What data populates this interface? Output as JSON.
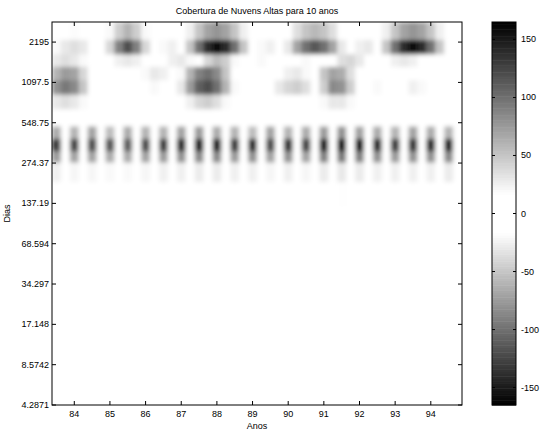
{
  "chart_data": {
    "type": "heatmap",
    "title": "Cobertura de Nuvens Altas para 10 anos",
    "x_label": "Anos",
    "y_label": "Dias",
    "xlim": [
      83.375,
      94.875
    ],
    "xticks": [
      84,
      85,
      86,
      87,
      88,
      89,
      90,
      91,
      92,
      93,
      94
    ],
    "ylim": [
      4.2871,
      3100
    ],
    "yticks": [
      4.2871,
      8.5742,
      17.148,
      34.297,
      68.594,
      137.19,
      274.37,
      548.75,
      1097.5,
      2195
    ],
    "log": "y",
    "y_edges": [
      4.2871,
      8,
      16,
      32,
      64,
      128,
      200,
      280,
      340,
      420,
      520,
      700,
      900,
      1150,
      1450,
      1800,
      2300,
      3100
    ],
    "cells": [
      [
        3,
        -2,
        -3,
        2,
        3,
        -2,
        -3,
        2,
        3,
        -2,
        -3,
        2,
        3,
        -2,
        -3,
        2,
        4,
        -2,
        -4,
        2,
        3,
        -2,
        -3,
        2,
        3,
        -2,
        -3,
        2,
        3,
        -2,
        -4,
        2,
        4,
        -2,
        -4,
        2,
        3,
        -2,
        -3,
        2,
        3,
        -2,
        -3,
        2,
        4,
        -2
      ],
      [
        4,
        -3,
        -4,
        3,
        4,
        -3,
        -4,
        3,
        4,
        -3,
        -4,
        3,
        4,
        -3,
        -4,
        3,
        5,
        -3,
        -5,
        3,
        4,
        -3,
        -4,
        3,
        4,
        -3,
        -4,
        3,
        4,
        -3,
        -5,
        3,
        5,
        -3,
        -5,
        3,
        4,
        -3,
        -4,
        3,
        4,
        -3,
        -4,
        3,
        5,
        -3
      ],
      [
        5,
        -4,
        -5,
        4,
        5,
        -4,
        -5,
        4,
        5,
        -4,
        -5,
        4,
        5,
        -4,
        -5,
        4,
        6,
        -4,
        -6,
        4,
        5,
        -4,
        -5,
        4,
        5,
        -4,
        -5,
        4,
        5,
        -4,
        -6,
        4,
        6,
        -4,
        -6,
        4,
        5,
        -4,
        -5,
        4,
        5,
        -4,
        -5,
        4,
        6,
        -4
      ],
      [
        7,
        -6,
        -6,
        6,
        7,
        -6,
        -6,
        6,
        7,
        -6,
        -7,
        6,
        7,
        -6,
        -7,
        6,
        8,
        -6,
        -8,
        6,
        7,
        -6,
        -7,
        6,
        7,
        -6,
        -7,
        6,
        7,
        -6,
        -8,
        6,
        8,
        -6,
        -8,
        6,
        7,
        -6,
        -7,
        6,
        7,
        -6,
        -7,
        6,
        8,
        -6
      ],
      [
        10,
        -8,
        -9,
        8,
        9,
        -8,
        -9,
        8,
        9,
        -8,
        -10,
        8,
        10,
        -8,
        -10,
        8,
        11,
        -8,
        -11,
        8,
        10,
        -8,
        -10,
        8,
        9,
        -8,
        -10,
        8,
        9,
        -8,
        -11,
        8,
        11,
        -8,
        -11,
        8,
        10,
        -8,
        -10,
        8,
        10,
        -8,
        -10,
        8,
        11,
        -8
      ],
      [
        15,
        -12,
        -14,
        12,
        14,
        -12,
        -13,
        12,
        13,
        -12,
        -14,
        12,
        15,
        -12,
        -15,
        12,
        16,
        -12,
        -16,
        12,
        15,
        -12,
        -15,
        12,
        14,
        -12,
        -15,
        12,
        14,
        -12,
        -16,
        12,
        17,
        -12,
        -16,
        12,
        15,
        -12,
        -15,
        12,
        15,
        -12,
        -15,
        12,
        16,
        -12
      ],
      [
        25,
        -5,
        -22,
        5,
        22,
        -5,
        -20,
        5,
        20,
        -5,
        -22,
        5,
        25,
        -5,
        -25,
        5,
        28,
        -5,
        -28,
        5,
        25,
        -5,
        -25,
        5,
        22,
        -5,
        -25,
        5,
        22,
        -5,
        -28,
        5,
        30,
        -5,
        -28,
        5,
        25,
        -5,
        -25,
        5,
        25,
        -5,
        -25,
        5,
        28,
        -5
      ],
      [
        75,
        10,
        -70,
        -10,
        70,
        10,
        -65,
        -10,
        65,
        10,
        -70,
        -10,
        75,
        10,
        -80,
        -10,
        85,
        10,
        -85,
        -10,
        75,
        10,
        -80,
        -10,
        70,
        10,
        -80,
        -10,
        70,
        10,
        -90,
        -10,
        95,
        10,
        -90,
        -10,
        80,
        10,
        -75,
        -10,
        80,
        10,
        -80,
        -10,
        85,
        10
      ],
      [
        130,
        15,
        -125,
        -15,
        120,
        15,
        -115,
        -15,
        110,
        15,
        -120,
        -15,
        130,
        15,
        -140,
        -15,
        150,
        15,
        -145,
        -15,
        130,
        15,
        -140,
        -15,
        120,
        15,
        -135,
        -15,
        125,
        15,
        -150,
        -15,
        160,
        15,
        -155,
        -15,
        140,
        15,
        -130,
        -15,
        135,
        15,
        -140,
        -15,
        145,
        15
      ],
      [
        65,
        5,
        -60,
        -5,
        70,
        5,
        -55,
        -5,
        65,
        5,
        -60,
        -5,
        60,
        5,
        -70,
        -5,
        75,
        5,
        -65,
        -5,
        60,
        5,
        -55,
        -5,
        70,
        5,
        -60,
        -5,
        65,
        5,
        -75,
        -5,
        80,
        5,
        -70,
        -5,
        65,
        5,
        -60,
        -5,
        70,
        5,
        -65,
        -5,
        60,
        5
      ],
      [
        10,
        -8,
        12,
        -6,
        8,
        -10,
        12,
        -8,
        10,
        -6,
        9,
        -10,
        11,
        -7,
        8,
        -9,
        12,
        -6,
        10,
        -8,
        9,
        -10,
        11,
        -7,
        12,
        -8,
        10,
        -9,
        8,
        -6,
        11,
        -10,
        12,
        -7,
        9,
        -8,
        10,
        -6,
        12,
        -9,
        8,
        -10,
        11,
        -7,
        9,
        -8
      ],
      [
        -30,
        -35,
        -30,
        -20,
        -5,
        5,
        10,
        10,
        5,
        0,
        -5,
        -10,
        -10,
        -5,
        10,
        25,
        40,
        45,
        35,
        20,
        5,
        0,
        -5,
        0,
        5,
        10,
        15,
        15,
        10,
        0,
        -20,
        -30,
        -30,
        -20,
        -5,
        5,
        10,
        5,
        0,
        -5,
        -10,
        -5,
        0,
        5,
        5,
        0
      ],
      [
        -80,
        -95,
        -85,
        -50,
        -15,
        0,
        10,
        15,
        10,
        -5,
        -15,
        -20,
        -15,
        -5,
        30,
        75,
        110,
        120,
        100,
        60,
        20,
        0,
        -10,
        0,
        15,
        30,
        40,
        45,
        35,
        0,
        -45,
        -85,
        -80,
        -45,
        -10,
        10,
        20,
        15,
        0,
        -15,
        -25,
        -20,
        -5,
        10,
        5,
        0
      ],
      [
        -60,
        -75,
        -70,
        -40,
        -10,
        0,
        10,
        10,
        5,
        -5,
        -20,
        -30,
        -25,
        -10,
        20,
        60,
        90,
        100,
        85,
        50,
        15,
        -5,
        -10,
        -5,
        5,
        15,
        25,
        30,
        20,
        -10,
        -50,
        -70,
        -65,
        -35,
        -5,
        10,
        15,
        10,
        0,
        -10,
        -15,
        -10,
        0,
        10,
        5,
        0
      ],
      [
        -30,
        -35,
        -30,
        -20,
        -5,
        5,
        15,
        25,
        30,
        25,
        15,
        0,
        -15,
        -25,
        -30,
        -20,
        10,
        40,
        55,
        45,
        20,
        0,
        -15,
        -20,
        -10,
        0,
        10,
        15,
        20,
        15,
        5,
        -15,
        -35,
        -40,
        -30,
        -10,
        5,
        15,
        25,
        30,
        25,
        15,
        5,
        -5,
        -10,
        -10
      ],
      [
        -20,
        -30,
        -35,
        -30,
        -15,
        10,
        40,
        90,
        120,
        90,
        40,
        5,
        -20,
        -25,
        -10,
        50,
        100,
        140,
        155,
        140,
        100,
        50,
        5,
        -20,
        -25,
        -10,
        30,
        70,
        100,
        115,
        100,
        70,
        30,
        -5,
        -25,
        -30,
        -10,
        50,
        100,
        140,
        155,
        140,
        100,
        50,
        10,
        -15
      ],
      [
        -10,
        -15,
        -18,
        -15,
        -8,
        5,
        20,
        45,
        60,
        45,
        20,
        3,
        -10,
        -12,
        -5,
        25,
        50,
        70,
        78,
        70,
        50,
        25,
        3,
        -10,
        -12,
        -5,
        15,
        35,
        50,
        58,
        50,
        35,
        15,
        -3,
        -12,
        -15,
        -5,
        25,
        50,
        70,
        78,
        70,
        50,
        25,
        5,
        -8
      ]
    ],
    "colorbar_lim": [
      -165,
      165
    ],
    "colorbar_ticks": [
      -150,
      -100,
      -50,
      0,
      50,
      100,
      150
    ]
  }
}
